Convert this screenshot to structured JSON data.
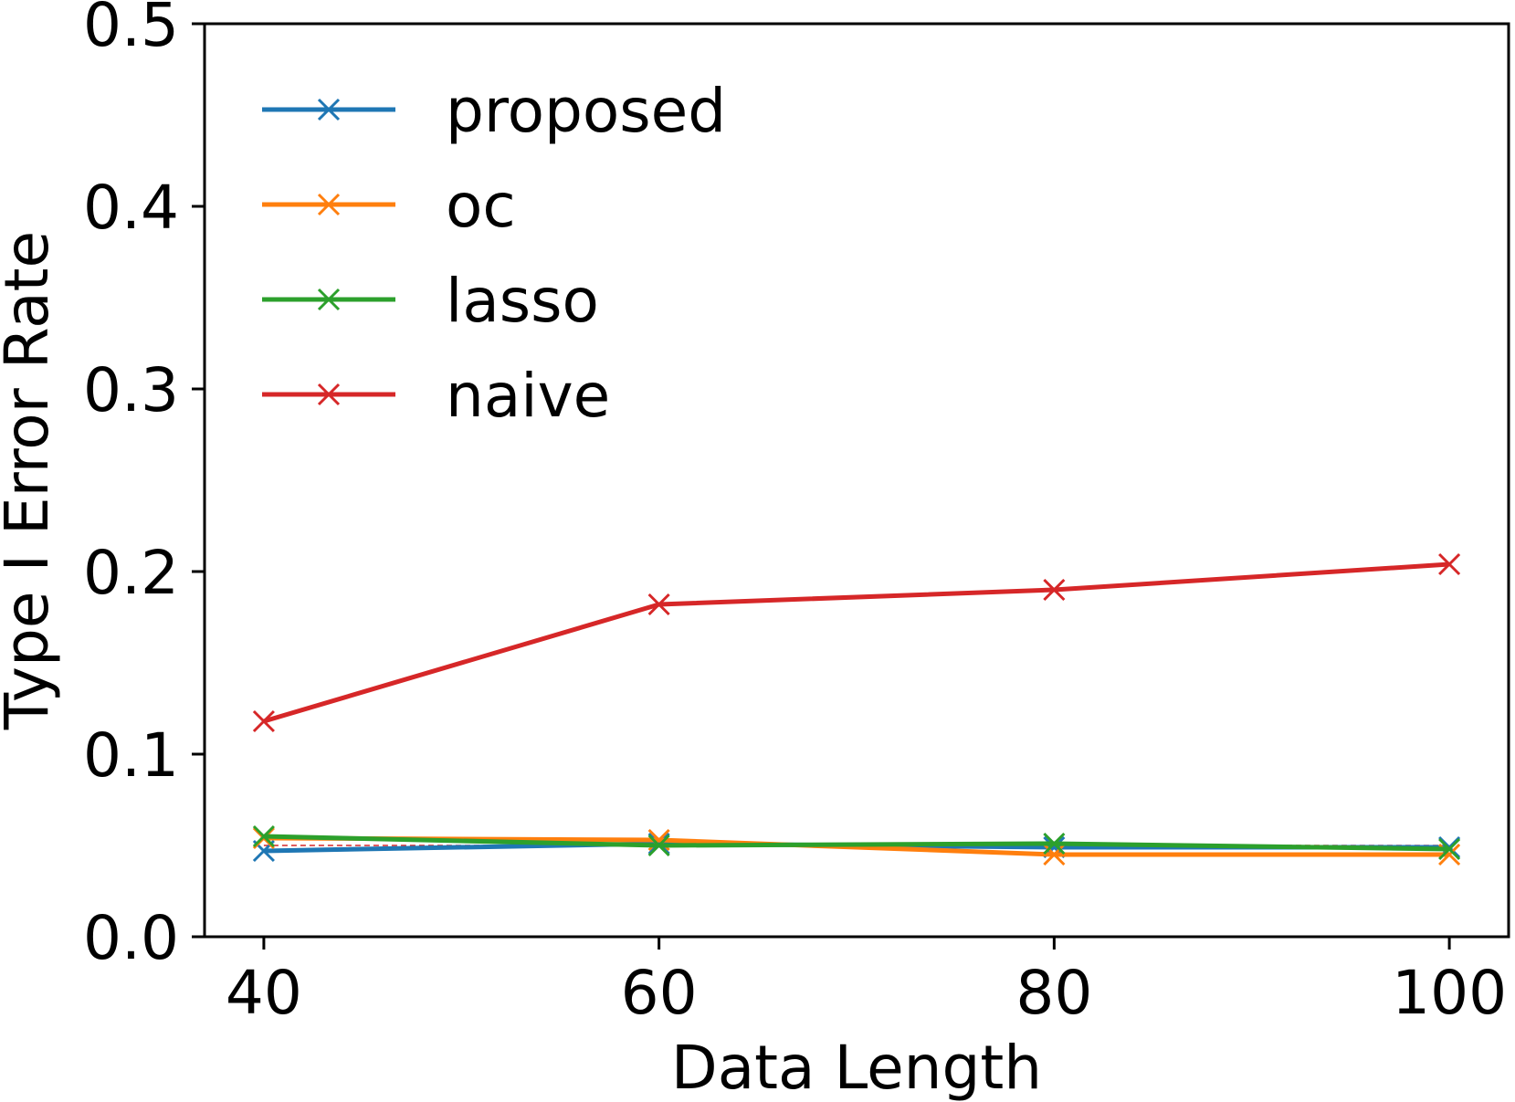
{
  "chart_data": {
    "type": "line",
    "title": "",
    "xlabel": "Data Length",
    "ylabel": "Type I Error Rate",
    "x": [
      40,
      60,
      80,
      100
    ],
    "xlim": [
      37,
      103
    ],
    "ylim": [
      0.0,
      0.5
    ],
    "xticks": [
      40,
      60,
      80,
      100
    ],
    "yticks": [
      0.0,
      0.1,
      0.2,
      0.3,
      0.4,
      0.5
    ],
    "ytick_labels": [
      "0.0",
      "0.1",
      "0.2",
      "0.3",
      "0.4",
      "0.5"
    ],
    "grid": false,
    "legend_position": "top-left",
    "marker": "x",
    "reference_line": {
      "y": 0.05,
      "style": "dashed",
      "color": "#d62728"
    },
    "series": [
      {
        "name": "proposed",
        "color": "#1f77b4",
        "values": [
          0.047,
          0.051,
          0.049,
          0.049
        ]
      },
      {
        "name": "oc",
        "color": "#ff7f0e",
        "values": [
          0.054,
          0.053,
          0.045,
          0.045
        ]
      },
      {
        "name": "lasso",
        "color": "#2ca02c",
        "values": [
          0.055,
          0.05,
          0.051,
          0.048
        ]
      },
      {
        "name": "naive",
        "color": "#d62728",
        "values": [
          0.118,
          0.182,
          0.19,
          0.204
        ]
      }
    ]
  }
}
